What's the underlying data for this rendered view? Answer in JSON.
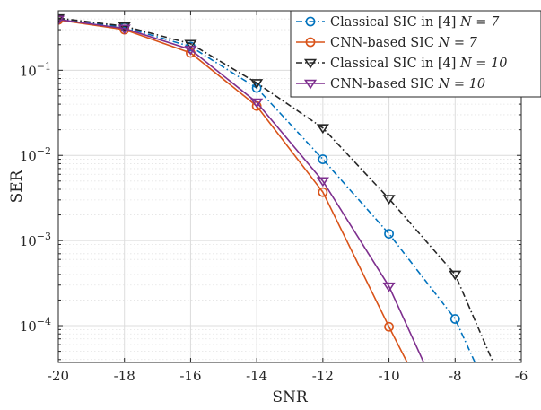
{
  "chart_data": {
    "type": "line",
    "xlabel": "SNR",
    "ylabel": "SER",
    "xlim": [
      -20,
      -6
    ],
    "ylim": [
      3.7e-05,
      0.5
    ],
    "yscale": "log",
    "x_ticks": [
      -20,
      -18,
      -16,
      -14,
      -12,
      -10,
      -8,
      -6
    ],
    "x_tick_labels": [
      "-20",
      "-18",
      "-16",
      "-14",
      "-12",
      "-10",
      "-8",
      "-6"
    ],
    "y_ticks": [
      0.0001,
      0.001,
      0.01,
      0.1
    ],
    "y_tick_labels": [
      {
        "base": "10",
        "exp": "−4"
      },
      {
        "base": "10",
        "exp": "−3"
      },
      {
        "base": "10",
        "exp": "−2"
      },
      {
        "base": "10",
        "exp": "−1"
      }
    ],
    "grid": true,
    "minor_grid": true,
    "legend_position": "top-right",
    "series": [
      {
        "name": "Classical SIC in [4] N = 7",
        "legend_prefix": "Classical SIC in [4] ",
        "legend_math": "N = 7",
        "color": "#0072BD",
        "line_style": "dash-dot",
        "marker": "circle",
        "x": [
          -20,
          -18,
          -16,
          -14,
          -12,
          -10,
          -8,
          -7.4
        ],
        "y": [
          0.4,
          0.32,
          0.19,
          0.062,
          0.009,
          0.0012,
          0.00012,
          3.7e-05
        ],
        "marker_count": 7
      },
      {
        "name": "CNN-based SIC N = 7",
        "legend_prefix": "CNN-based SIC ",
        "legend_math": "N = 7",
        "color": "#D95319",
        "line_style": "solid",
        "marker": "circle",
        "x": [
          -20,
          -18,
          -16,
          -14,
          -12,
          -10,
          -9.45
        ],
        "y": [
          0.39,
          0.3,
          0.16,
          0.038,
          0.0037,
          9.7e-05,
          3.7e-05
        ],
        "marker_count": 6
      },
      {
        "name": "Classical SIC in [4] N = 10",
        "legend_prefix": "Classical SIC in [4] ",
        "legend_math": "N = 10",
        "color": "#262626",
        "line_style": "dash-dot",
        "marker": "triangle-down",
        "x": [
          -20,
          -18,
          -16,
          -14,
          -12,
          -10,
          -8,
          -6.85
        ],
        "y": [
          0.41,
          0.33,
          0.205,
          0.071,
          0.021,
          0.0031,
          0.0004,
          3.7e-05
        ],
        "marker_count": 7
      },
      {
        "name": "CNN-based SIC N = 10",
        "legend_prefix": "CNN-based SIC ",
        "legend_math": "N = 10",
        "color": "#7E2F8E",
        "line_style": "solid",
        "marker": "triangle-down",
        "x": [
          -20,
          -18,
          -16,
          -14,
          -12,
          -10,
          -8.95
        ],
        "y": [
          0.395,
          0.31,
          0.175,
          0.042,
          0.005,
          0.00029,
          3.7e-05
        ],
        "marker_count": 6
      }
    ]
  }
}
